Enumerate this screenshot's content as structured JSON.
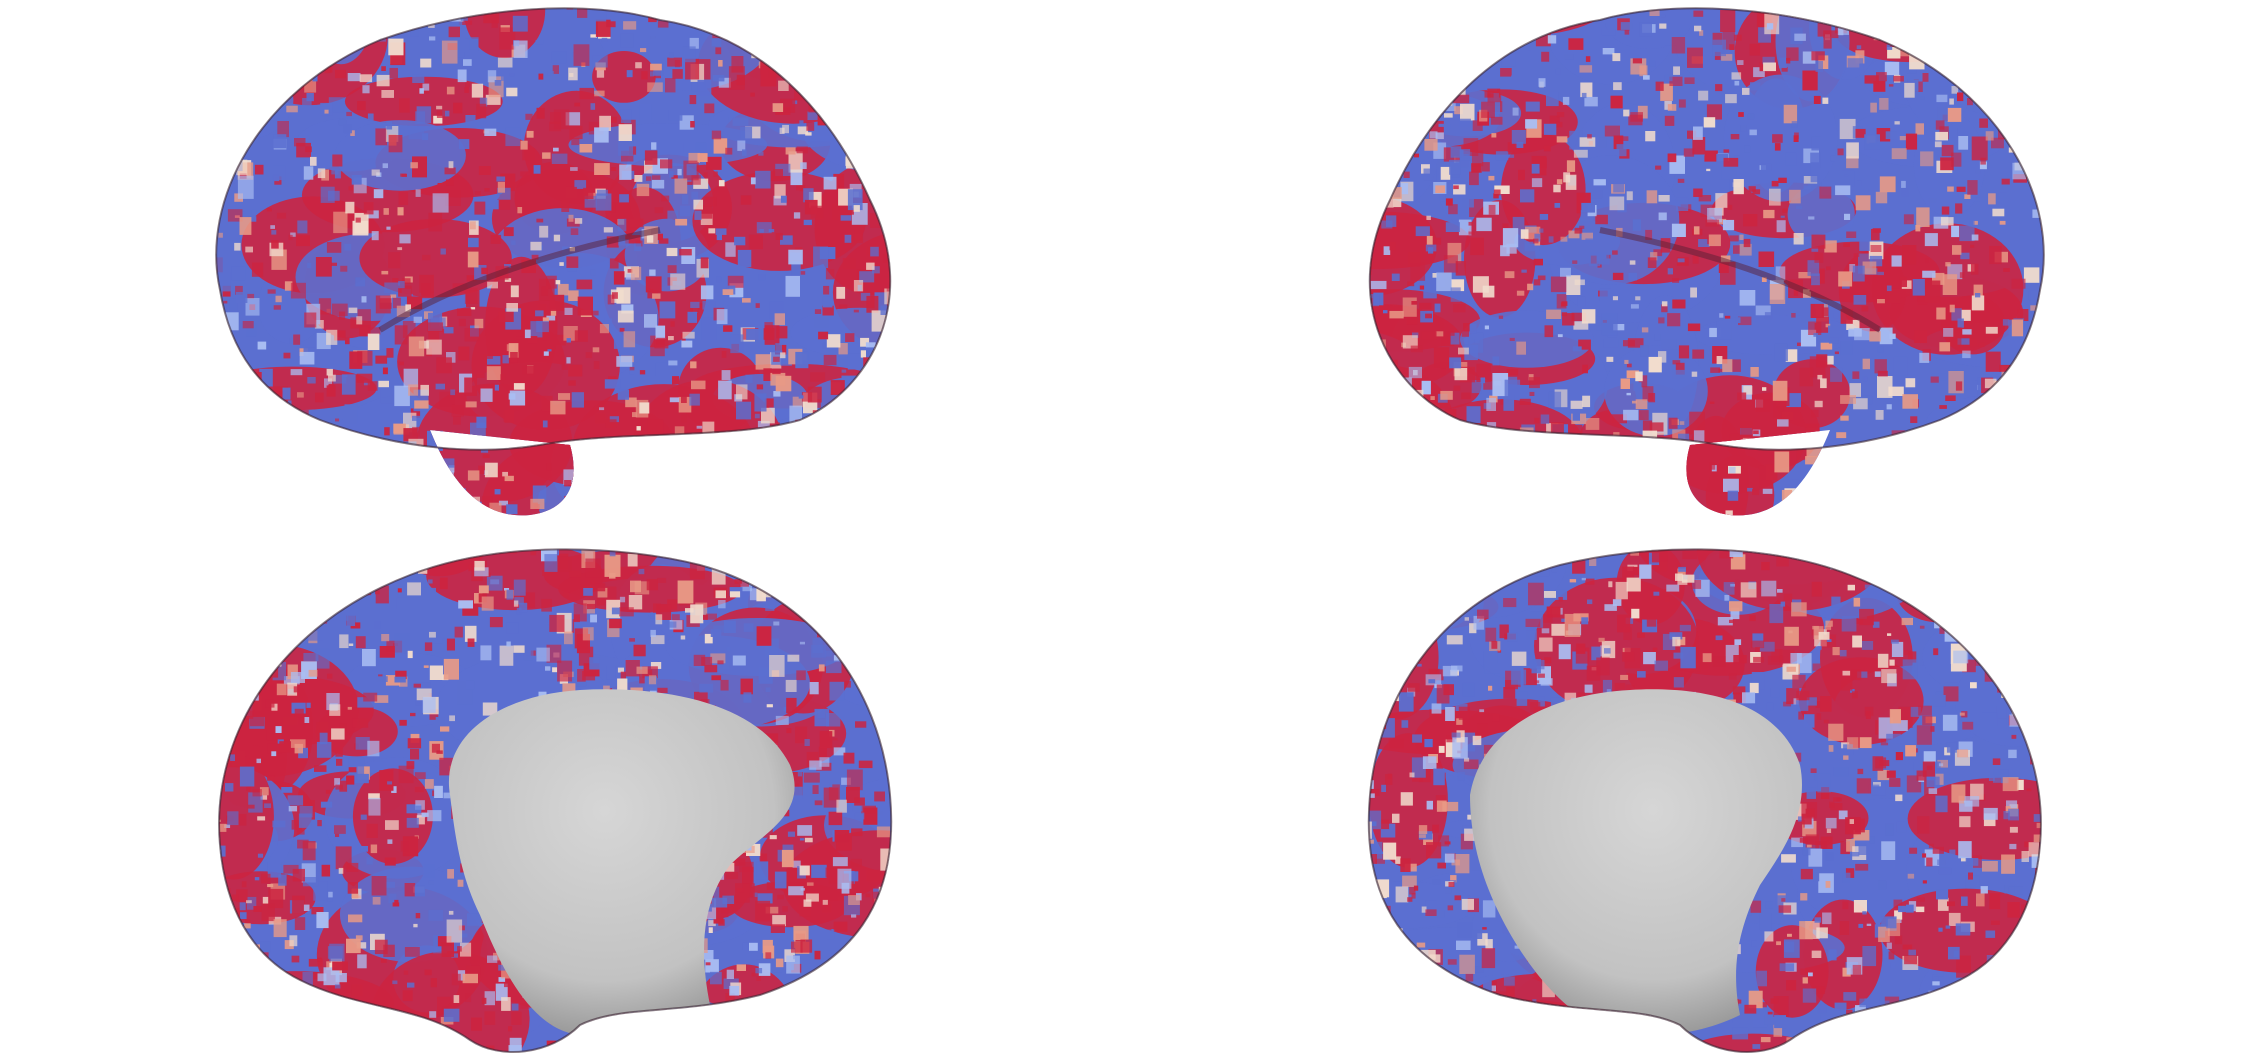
{
  "figure": {
    "background": "#ffffff",
    "views": [
      {
        "hemisphere": "left",
        "view": "lateral"
      },
      {
        "hemisphere": "right",
        "view": "lateral"
      },
      {
        "hemisphere": "left",
        "view": "medial"
      },
      {
        "hemisphere": "right",
        "view": "medial"
      }
    ],
    "colormap": {
      "negative": "#5b6fd0",
      "negative_light": "#a9bdf2",
      "neutral": "#f1dccd",
      "positive_light": "#e89a86",
      "positive": "#cc2440"
    },
    "medial_wall_color": "#c9c9c9",
    "edge_color": "#3a2430"
  }
}
